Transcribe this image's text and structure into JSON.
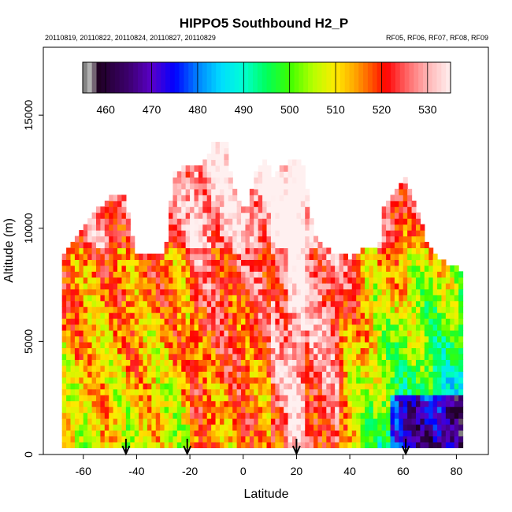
{
  "chart_data": {
    "type": "heatmap",
    "title": "HIPPO5 Southbound H2_P",
    "subtitle_left": "20110819, 20110822, 20110824, 20110827, 20110829",
    "subtitle_right": "RF05, RF06, RF07, RF08, RF09",
    "xlabel": "Latitude",
    "ylabel": "Altitude (m)",
    "xlim": [
      -75,
      92
    ],
    "ylim": [
      0,
      18000
    ],
    "x_ticks": [
      -60,
      -40,
      -20,
      0,
      20,
      40,
      60,
      80
    ],
    "y_ticks": [
      0,
      5000,
      10000,
      15000
    ],
    "colorbar": {
      "range": [
        455,
        535
      ],
      "ticks": [
        460,
        470,
        480,
        490,
        500,
        510,
        520,
        530
      ]
    },
    "markers_latitude": [
      -44,
      -21,
      20,
      61
    ],
    "data_extent": {
      "lat_range": [
        -68,
        82
      ],
      "alt_range": [
        0,
        13500
      ]
    }
  }
}
